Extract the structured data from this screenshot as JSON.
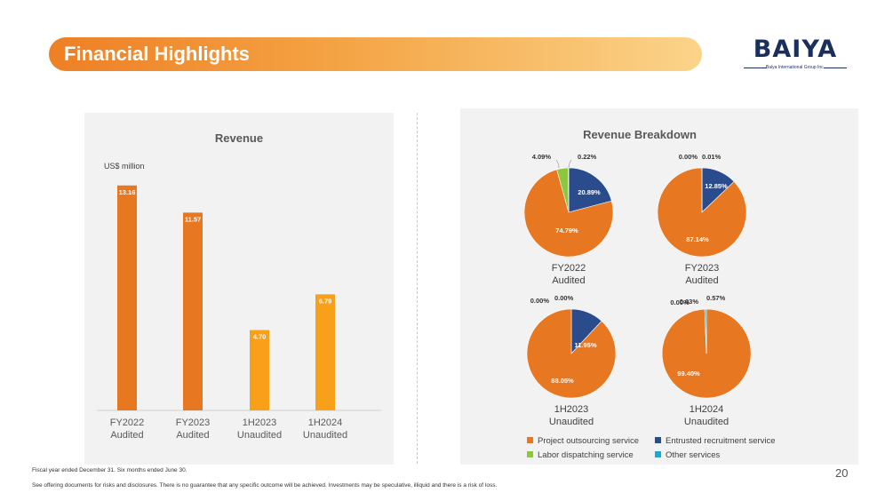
{
  "header": {
    "title": "Financial Highlights"
  },
  "logo": {
    "text": "BAIYA",
    "subtitle": "Baiya International Group Inc."
  },
  "footnotes": {
    "line1": "Fiscal year ended December 31. Six months ended June 30.",
    "line2": "See offering documents for risks and disclosures. There is no guarantee that any specific outcome will be achieved. Investments may be speculative, illiquid and there is a risk of loss."
  },
  "page_number": "20",
  "colors": {
    "bar_dark": "#e87722",
    "bar_light": "#f9a01b",
    "project_outsourcing": "#e87722",
    "entrusted_recruitment": "#2b4c8c",
    "labor_dispatching": "#8dc63f",
    "other_services": "#1ca6d9",
    "banner_start": "#ee7f25",
    "banner_end": "#fbd48a"
  },
  "chart_data": [
    {
      "type": "bar",
      "title": "Revenue",
      "ylabel": "US$ million",
      "xlabel": "",
      "categories": [
        [
          "FY2022",
          "Audited"
        ],
        [
          "FY2023",
          "Audited"
        ],
        [
          "1H2023",
          "Unaudited"
        ],
        [
          "1H2024",
          "Unaudited"
        ]
      ],
      "values": [
        13.16,
        11.57,
        4.7,
        6.79
      ],
      "value_labels": [
        "13.16",
        "11.57",
        "4.70",
        "6.79"
      ],
      "ylim": [
        0,
        13.2
      ],
      "grid": false
    },
    {
      "type": "pie",
      "title": "Revenue Breakdown",
      "legend": [
        "Project outsourcing service",
        "Entrusted recruitment service",
        "Labor dispatching service",
        "Other services"
      ],
      "legend_position": "bottom",
      "pies": [
        {
          "label": [
            "FY2022",
            "Audited"
          ],
          "slices": [
            {
              "name": "Entrusted recruitment service",
              "value": 20.89,
              "label": "20.89%"
            },
            {
              "name": "Project outsourcing service",
              "value": 74.79,
              "label": "74.79%"
            },
            {
              "name": "Labor dispatching service",
              "value": 4.09,
              "label": "4.09%"
            },
            {
              "name": "Other services",
              "value": 0.22,
              "label": "0.22%"
            }
          ]
        },
        {
          "label": [
            "FY2023",
            "Audited"
          ],
          "slices": [
            {
              "name": "Entrusted recruitment service",
              "value": 12.85,
              "label": "12.85%"
            },
            {
              "name": "Project outsourcing service",
              "value": 87.14,
              "label": "87.14%"
            },
            {
              "name": "Labor dispatching service",
              "value": 0.0,
              "label": "0.00%"
            },
            {
              "name": "Other services",
              "value": 0.01,
              "label": "0.01%"
            }
          ]
        },
        {
          "label": [
            "1H2023",
            "Unaudited"
          ],
          "slices": [
            {
              "name": "Entrusted recruitment service",
              "value": 11.95,
              "label": "11.95%"
            },
            {
              "name": "Project outsourcing service",
              "value": 88.05,
              "label": "88.05%"
            },
            {
              "name": "Labor dispatching service",
              "value": 0.0,
              "label": "0.00%"
            },
            {
              "name": "Other services",
              "value": 0.0,
              "label": "0.00%"
            }
          ]
        },
        {
          "label": [
            "1H2024",
            "Unaudited"
          ],
          "slices": [
            {
              "name": "Entrusted recruitment service",
              "value": 0.0,
              "label": "0.00%"
            },
            {
              "name": "Project outsourcing service",
              "value": 99.4,
              "label": "99.40%"
            },
            {
              "name": "Labor dispatching service",
              "value": 0.03,
              "label": "0.03%"
            },
            {
              "name": "Other services",
              "value": 0.57,
              "label": "0.57%"
            }
          ]
        }
      ]
    }
  ]
}
